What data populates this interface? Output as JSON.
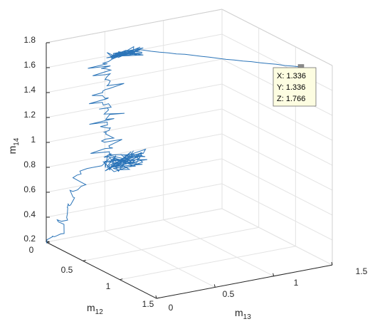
{
  "chart_data": {
    "type": "line3d",
    "title": "",
    "xlabel": "m",
    "xlabel_sub": "12",
    "ylabel": "m",
    "ylabel_sub": "13",
    "zlabel": "m",
    "zlabel_sub": "14",
    "xlim": [
      0,
      1.5
    ],
    "ylim": [
      0,
      1.5
    ],
    "zlim": [
      0.2,
      1.8
    ],
    "x_ticks": [
      "0",
      "0.5",
      "1",
      "1.5"
    ],
    "y_ticks": [
      "0",
      "0.5",
      "1",
      "1.5"
    ],
    "z_ticks": [
      "0.2",
      "0.4",
      "0.6",
      "0.8",
      "1",
      "1.2",
      "1.4",
      "1.6",
      "1.8"
    ],
    "grid": true,
    "box": true,
    "line_color": "#2b74b8",
    "series": [
      {
        "description_points": [
          [
            0.0,
            0.0,
            0.2
          ],
          [
            0.08,
            0.02,
            0.26
          ],
          [
            0.16,
            0.05,
            0.32
          ],
          [
            0.12,
            0.04,
            0.4
          ],
          [
            0.2,
            0.06,
            0.46
          ],
          [
            0.18,
            0.05,
            0.54
          ],
          [
            0.26,
            0.08,
            0.58
          ],
          [
            0.22,
            0.07,
            0.66
          ],
          [
            0.3,
            0.1,
            0.7
          ],
          [
            0.28,
            0.09,
            0.78
          ],
          [
            0.34,
            0.11,
            0.84
          ],
          [
            0.3,
            0.32,
            0.86
          ],
          [
            0.32,
            0.34,
            0.92
          ],
          [
            0.33,
            0.34,
            1.05
          ],
          [
            0.32,
            0.33,
            1.2
          ],
          [
            0.33,
            0.34,
            1.35
          ],
          [
            0.32,
            0.33,
            1.5
          ],
          [
            0.33,
            0.34,
            1.62
          ],
          [
            0.33,
            0.34,
            1.77
          ],
          [
            1.336,
            1.336,
            1.766
          ]
        ]
      }
    ],
    "datatip": {
      "x_text": "X: 1.336",
      "y_text": "Y: 1.336",
      "z_text": "Z: 1.766"
    }
  }
}
